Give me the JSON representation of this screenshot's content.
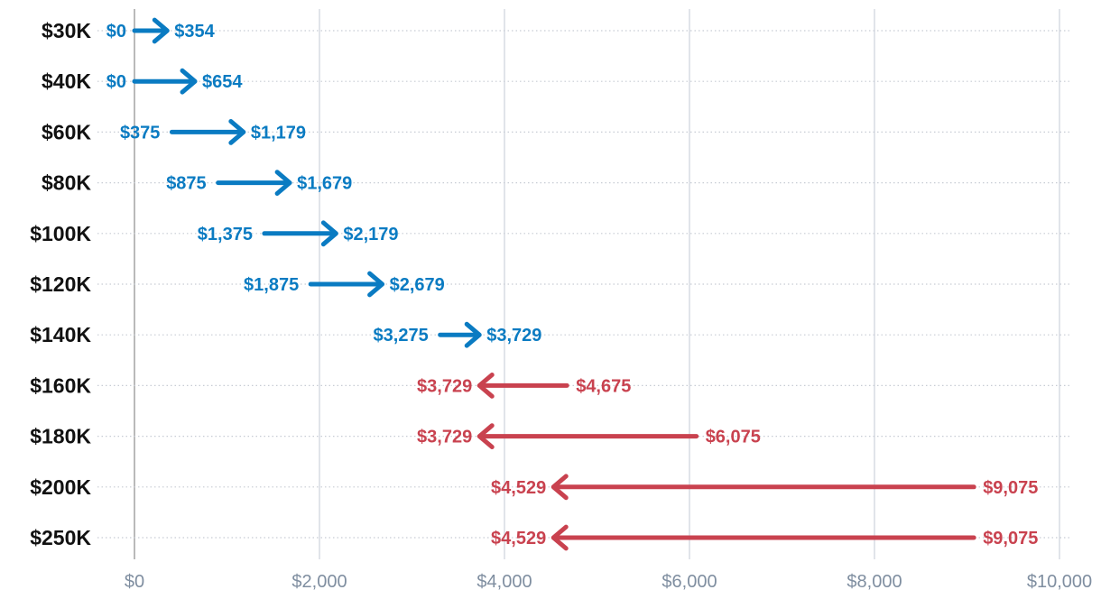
{
  "chart_data": {
    "type": "arrow-range",
    "categories": [
      "$30K",
      "$40K",
      "$60K",
      "$80K",
      "$100K",
      "$120K",
      "$140K",
      "$160K",
      "$180K",
      "$200K",
      "$250K"
    ],
    "rows": [
      {
        "category": "$30K",
        "from": 0,
        "to": 354,
        "from_label": "$0",
        "to_label": "$354"
      },
      {
        "category": "$40K",
        "from": 0,
        "to": 654,
        "from_label": "$0",
        "to_label": "$654"
      },
      {
        "category": "$60K",
        "from": 375,
        "to": 1179,
        "from_label": "$375",
        "to_label": "$1,179"
      },
      {
        "category": "$80K",
        "from": 875,
        "to": 1679,
        "from_label": "$875",
        "to_label": "$1,679"
      },
      {
        "category": "$100K",
        "from": 1375,
        "to": 2179,
        "from_label": "$1,375",
        "to_label": "$2,179"
      },
      {
        "category": "$120K",
        "from": 1875,
        "to": 2679,
        "from_label": "$1,875",
        "to_label": "$2,679"
      },
      {
        "category": "$140K",
        "from": 3275,
        "to": 3729,
        "from_label": "$3,275",
        "to_label": "$3,729"
      },
      {
        "category": "$160K",
        "from": 4675,
        "to": 3729,
        "from_label": "$4,675",
        "to_label": "$3,729"
      },
      {
        "category": "$180K",
        "from": 6075,
        "to": 3729,
        "from_label": "$6,075",
        "to_label": "$3,729"
      },
      {
        "category": "$200K",
        "from": 9075,
        "to": 4529,
        "from_label": "$9,075",
        "to_label": "$4,529"
      },
      {
        "category": "$250K",
        "from": 9075,
        "to": 4529,
        "from_label": "$9,075",
        "to_label": "$4,529"
      }
    ],
    "xticks": [
      0,
      2000,
      4000,
      6000,
      8000,
      10000
    ],
    "xtick_labels": [
      "$0",
      "$2,000",
      "$4,000",
      "$6,000",
      "$8,000",
      "$10,000"
    ],
    "xlim": [
      0,
      10000
    ],
    "title": "",
    "xlabel": "",
    "ylabel": "",
    "grid": true,
    "legend": "none",
    "colors": {
      "increase": "#0a7bc2",
      "decrease": "#c9424f",
      "gridline": "#d4d9e2",
      "zero_line": "#a8a8a8",
      "row_guide": "#c7ccd4",
      "row_label": "#111111",
      "tick_label": "#7f8ea0"
    }
  }
}
